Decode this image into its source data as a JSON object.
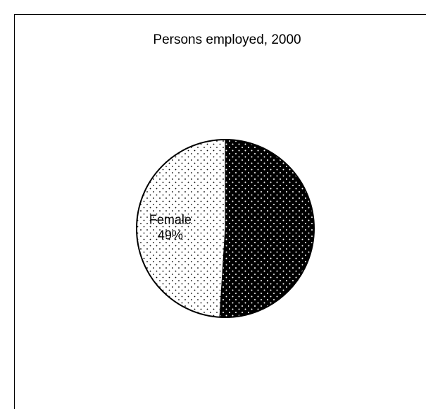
{
  "chart_data": {
    "type": "pie",
    "title": "Persons employed, 2000",
    "slices": [
      {
        "label": "Female",
        "percent_label": "49%",
        "value": 49,
        "fill": "#ffffff",
        "dot": "#000000",
        "show_label": true
      },
      {
        "label": "",
        "percent_label": "",
        "value": 51,
        "fill": "#000000",
        "dot": "#ffffff",
        "show_label": false
      }
    ],
    "start_angle_deg": 0,
    "legend": "none"
  }
}
